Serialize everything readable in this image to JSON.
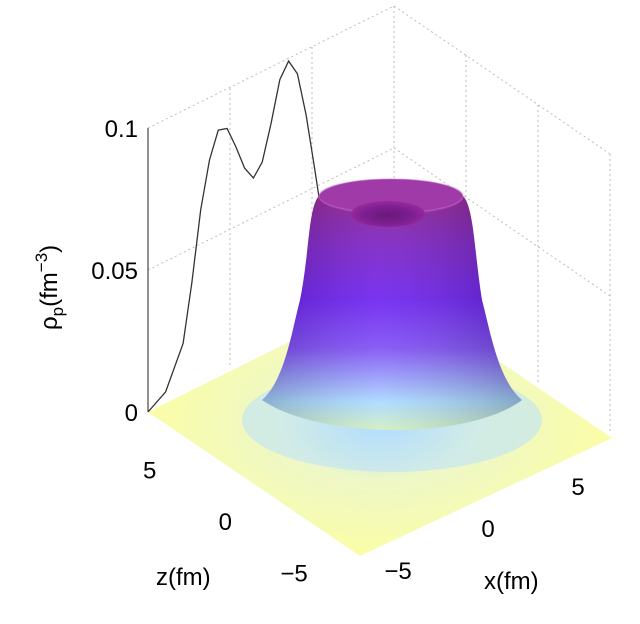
{
  "chart_data": {
    "type": "surface3d",
    "title": "",
    "xlabel": "x(fm)",
    "zlabel": "z(fm)",
    "ylabel_base": "ρ",
    "ylabel_sub": "p",
    "ylabel_unit_open": "(fm",
    "ylabel_unit_sup": "−3",
    "ylabel_unit_close": ")",
    "xlim": [
      -7,
      7
    ],
    "zlim": [
      -7,
      7
    ],
    "ylim": [
      0,
      0.1
    ],
    "x_ticks": [
      {
        "value": -5,
        "label": "−5"
      },
      {
        "value": 0,
        "label": "0"
      },
      {
        "value": 5,
        "label": "5"
      }
    ],
    "z_ticks": [
      {
        "value": 5,
        "label": "5"
      },
      {
        "value": 0,
        "label": "0"
      },
      {
        "value": -5,
        "label": "−5"
      }
    ],
    "y_ticks": [
      {
        "value": 0,
        "label": "0"
      },
      {
        "value": 0.05,
        "label": "0.05"
      },
      {
        "value": 0.1,
        "label": "0.1"
      }
    ],
    "surface": {
      "profile": "central depression (ring-shaped peak)",
      "peak_density": 0.077,
      "peak_radius_fm": 1.6,
      "center_density": 0.064,
      "half_density_radius_fm": 3.8,
      "colormap": [
        "#ffff9a",
        "#a8d8ff",
        "#6a1ef0",
        "#8a1c8c"
      ]
    },
    "projection_curve": {
      "plane": "back wall (x = -7)",
      "points": [
        {
          "z": -7.0,
          "rho": 0.0
        },
        {
          "z": -6.0,
          "rho": 0.004
        },
        {
          "z": -5.0,
          "rho": 0.018
        },
        {
          "z": -4.5,
          "rho": 0.038
        },
        {
          "z": -4.0,
          "rho": 0.062
        },
        {
          "z": -3.5,
          "rho": 0.078
        },
        {
          "z": -3.0,
          "rho": 0.087
        },
        {
          "z": -2.5,
          "rho": 0.086
        },
        {
          "z": -2.0,
          "rho": 0.078
        },
        {
          "z": -1.5,
          "rho": 0.069
        },
        {
          "z": -1.0,
          "rho": 0.064
        },
        {
          "z": -0.5,
          "rho": 0.068
        },
        {
          "z": 0.0,
          "rho": 0.08
        },
        {
          "z": 0.5,
          "rho": 0.094
        },
        {
          "z": 1.0,
          "rho": 0.099
        },
        {
          "z": 1.5,
          "rho": 0.093
        },
        {
          "z": 2.0,
          "rho": 0.077
        },
        {
          "z": 2.5,
          "rho": 0.056
        },
        {
          "z": 3.0,
          "rho": 0.034
        },
        {
          "z": 3.5,
          "rho": 0.016
        },
        {
          "z": 4.0,
          "rho": 0.006
        },
        {
          "z": 5.0,
          "rho": 0.001
        },
        {
          "z": 7.0,
          "rho": 0.0
        }
      ]
    },
    "grid": true
  }
}
